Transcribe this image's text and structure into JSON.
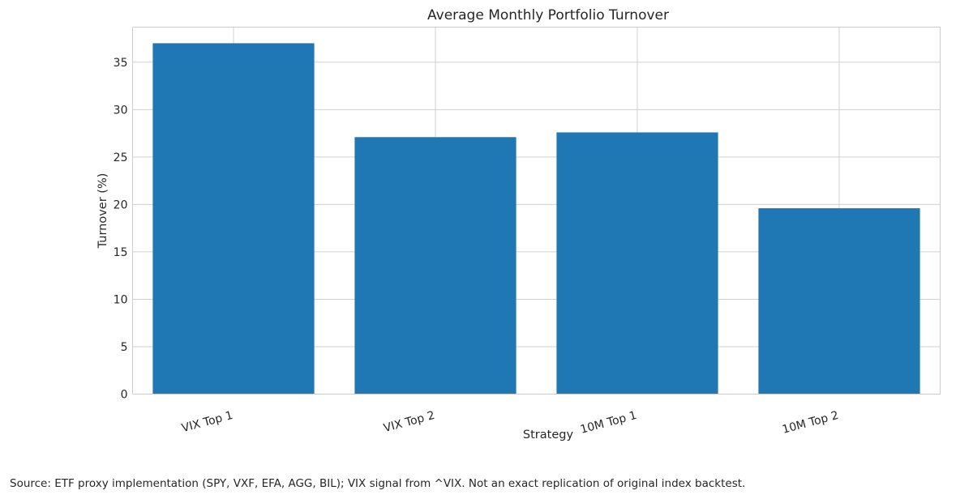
{
  "chart_data": {
    "type": "bar",
    "title": "Average Monthly Portfolio Turnover",
    "xlabel": "Strategy",
    "ylabel": "Turnover (%)",
    "categories": [
      "VIX Top 1",
      "VIX Top 2",
      "10M Top 1",
      "10M Top 2"
    ],
    "values": [
      37.0,
      27.1,
      27.6,
      19.6
    ],
    "ylim": [
      0,
      38.7
    ],
    "yticks": [
      0,
      5,
      10,
      15,
      20,
      25,
      30,
      35
    ],
    "grid": true,
    "bar_color": "#1f77b4",
    "grid_color": "#d0d0d0",
    "frame_color": "#cccccc"
  },
  "footer": {
    "source_note": "Source: ETF proxy implementation (SPY, VXF, EFA, AGG, BIL); VIX signal from ^VIX. Not an exact replication of original index backtest."
  }
}
